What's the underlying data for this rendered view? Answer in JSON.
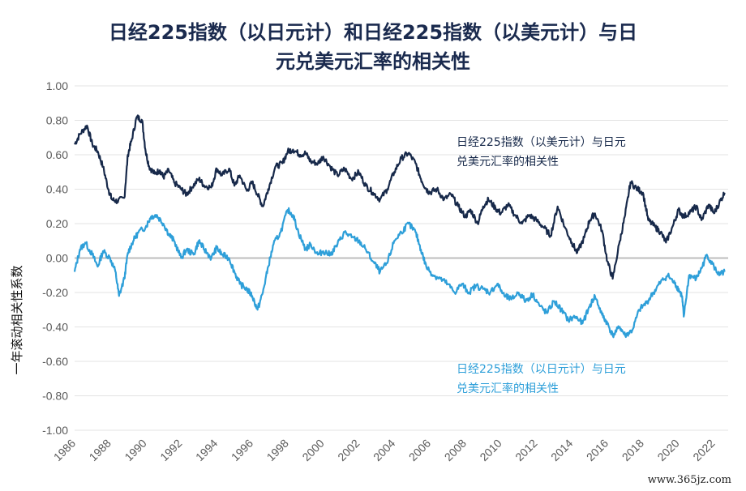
{
  "chart_data": {
    "type": "line",
    "title": "日经225指数（以日元计）和日经225指数（以美元计）与日元兑美元汇率的相关性",
    "title_line1": "日经225指数（以日元计）和日经225指数（以美元计）与日",
    "title_line2": "元兑美元汇率的相关性",
    "xlabel": "",
    "ylabel": "一年滚动相关性系数",
    "xlim": [
      1986,
      2022.8
    ],
    "ylim": [
      -1.0,
      1.0
    ],
    "x_ticks": [
      "1986",
      "1988",
      "1990",
      "1992",
      "1994",
      "1996",
      "1998",
      "2000",
      "2002",
      "2004",
      "2006",
      "2008",
      "2010",
      "2012",
      "2014",
      "2016",
      "2018",
      "2020",
      "2022"
    ],
    "y_ticks": [
      "1.00",
      "0.80",
      "0.60",
      "0.40",
      "0.20",
      "0.00",
      "-0.20",
      "-0.40",
      "-0.60",
      "-0.80",
      "-1.00"
    ],
    "grid": true,
    "series": [
      {
        "name": "日经225指数（以美元计）与日元兑美元汇率的相关性",
        "label_line1": "日经225指数（以美元计）与日元",
        "label_line2": "兑美元汇率的相关性",
        "color": "#17294a",
        "x": [
          1986.0,
          1986.3,
          1986.7,
          1987.0,
          1987.3,
          1987.6,
          1987.9,
          1988.1,
          1988.4,
          1988.8,
          1989.0,
          1989.2,
          1989.5,
          1989.8,
          1990.0,
          1990.2,
          1990.5,
          1990.8,
          1991.0,
          1991.3,
          1991.6,
          1992.0,
          1992.3,
          1992.6,
          1993.0,
          1993.3,
          1993.7,
          1994.0,
          1994.3,
          1994.7,
          1995.0,
          1995.3,
          1995.7,
          1996.0,
          1996.3,
          1996.6,
          1996.9,
          1997.3,
          1997.7,
          1998.0,
          1998.3,
          1998.7,
          1999.0,
          1999.3,
          1999.7,
          2000.0,
          2000.4,
          2000.8,
          2001.2,
          2001.6,
          2002.0,
          2002.4,
          2002.8,
          2003.2,
          2003.6,
          2004.0,
          2004.4,
          2004.8,
          2005.2,
          2005.5,
          2005.8,
          2006.0,
          2006.4,
          2006.8,
          2007.2,
          2007.6,
          2008.0,
          2008.3,
          2008.7,
          2009.0,
          2009.3,
          2009.7,
          2010.0,
          2010.4,
          2010.8,
          2011.2,
          2011.6,
          2012.0,
          2012.4,
          2012.8,
          2013.2,
          2013.6,
          2014.0,
          2014.3,
          2014.7,
          2015.0,
          2015.3,
          2015.7,
          2016.0,
          2016.3,
          2016.7,
          2017.0,
          2017.3,
          2017.7,
          2018.0,
          2018.3,
          2018.7,
          2019.0,
          2019.3,
          2019.7,
          2020.0,
          2020.3,
          2020.7,
          2021.0,
          2021.3,
          2021.7,
          2022.0,
          2022.3,
          2022.6
        ],
        "y": [
          0.66,
          0.72,
          0.77,
          0.66,
          0.62,
          0.53,
          0.4,
          0.34,
          0.33,
          0.35,
          0.6,
          0.68,
          0.82,
          0.8,
          0.62,
          0.53,
          0.49,
          0.51,
          0.47,
          0.51,
          0.44,
          0.4,
          0.37,
          0.41,
          0.46,
          0.42,
          0.41,
          0.52,
          0.48,
          0.52,
          0.42,
          0.48,
          0.39,
          0.44,
          0.37,
          0.3,
          0.4,
          0.53,
          0.55,
          0.62,
          0.63,
          0.6,
          0.61,
          0.56,
          0.55,
          0.59,
          0.53,
          0.48,
          0.52,
          0.46,
          0.5,
          0.42,
          0.38,
          0.34,
          0.4,
          0.5,
          0.58,
          0.61,
          0.55,
          0.46,
          0.4,
          0.38,
          0.4,
          0.34,
          0.37,
          0.3,
          0.24,
          0.28,
          0.2,
          0.3,
          0.34,
          0.29,
          0.26,
          0.31,
          0.25,
          0.2,
          0.25,
          0.22,
          0.18,
          0.13,
          0.3,
          0.18,
          0.09,
          0.03,
          0.12,
          0.22,
          0.26,
          0.16,
          -0.02,
          -0.12,
          0.1,
          0.25,
          0.44,
          0.4,
          0.38,
          0.22,
          0.18,
          0.15,
          0.09,
          0.19,
          0.28,
          0.24,
          0.27,
          0.3,
          0.22,
          0.31,
          0.26,
          0.32,
          0.38
        ]
      },
      {
        "name": "日经225指数（以日元计）与日元兑美元汇率的相关性",
        "label_line1": "日经225指数（以日元计）与日元",
        "label_line2": "兑美元汇率的相关性",
        "color": "#2e9fd9",
        "x": [
          1986.0,
          1986.3,
          1986.6,
          1987.0,
          1987.3,
          1987.6,
          1988.0,
          1988.3,
          1988.5,
          1988.8,
          1989.0,
          1989.3,
          1989.6,
          1990.0,
          1990.3,
          1990.6,
          1991.0,
          1991.3,
          1991.6,
          1992.0,
          1992.3,
          1992.7,
          1993.0,
          1993.3,
          1993.7,
          1994.0,
          1994.3,
          1994.7,
          1995.0,
          1995.3,
          1995.7,
          1996.0,
          1996.3,
          1996.6,
          1996.9,
          1997.2,
          1997.6,
          1998.0,
          1998.3,
          1998.6,
          1999.0,
          1999.3,
          1999.7,
          2000.0,
          2000.4,
          2000.8,
          2001.2,
          2001.6,
          2002.0,
          2002.4,
          2002.8,
          2003.2,
          2003.6,
          2004.0,
          2004.4,
          2004.8,
          2005.2,
          2005.5,
          2005.8,
          2006.2,
          2006.6,
          2007.0,
          2007.4,
          2007.8,
          2008.2,
          2008.6,
          2009.0,
          2009.4,
          2009.8,
          2010.2,
          2010.6,
          2011.0,
          2011.4,
          2011.8,
          2012.2,
          2012.6,
          2013.0,
          2013.4,
          2013.8,
          2014.2,
          2014.6,
          2015.0,
          2015.3,
          2015.7,
          2016.0,
          2016.3,
          2016.7,
          2017.0,
          2017.4,
          2017.8,
          2018.2,
          2018.6,
          2019.0,
          2019.4,
          2019.8,
          2020.0,
          2020.2,
          2020.3,
          2020.6,
          2021.0,
          2021.3,
          2021.6,
          2022.0,
          2022.3,
          2022.6
        ],
        "y": [
          -0.08,
          0.05,
          0.09,
          0.02,
          -0.05,
          0.04,
          0.0,
          -0.08,
          -0.22,
          -0.12,
          0.03,
          0.1,
          0.15,
          0.18,
          0.24,
          0.25,
          0.2,
          0.14,
          0.1,
          0.0,
          0.05,
          0.02,
          0.1,
          0.05,
          0.0,
          0.06,
          0.02,
          0.0,
          -0.08,
          -0.15,
          -0.18,
          -0.22,
          -0.3,
          -0.2,
          -0.05,
          0.08,
          0.15,
          0.28,
          0.25,
          0.15,
          0.05,
          0.08,
          0.02,
          0.04,
          0.02,
          0.08,
          0.15,
          0.12,
          0.1,
          0.05,
          -0.02,
          -0.08,
          -0.03,
          0.1,
          0.15,
          0.2,
          0.15,
          0.05,
          -0.05,
          -0.1,
          -0.12,
          -0.15,
          -0.2,
          -0.15,
          -0.2,
          -0.16,
          -0.18,
          -0.2,
          -0.15,
          -0.22,
          -0.24,
          -0.2,
          -0.25,
          -0.21,
          -0.28,
          -0.32,
          -0.25,
          -0.3,
          -0.36,
          -0.34,
          -0.38,
          -0.28,
          -0.22,
          -0.33,
          -0.38,
          -0.45,
          -0.4,
          -0.45,
          -0.42,
          -0.3,
          -0.26,
          -0.2,
          -0.14,
          -0.1,
          -0.15,
          -0.18,
          -0.22,
          -0.34,
          -0.1,
          -0.12,
          -0.06,
          0.02,
          -0.05,
          -0.1,
          -0.08
        ]
      }
    ]
  },
  "watermark": "www.365jz.com"
}
